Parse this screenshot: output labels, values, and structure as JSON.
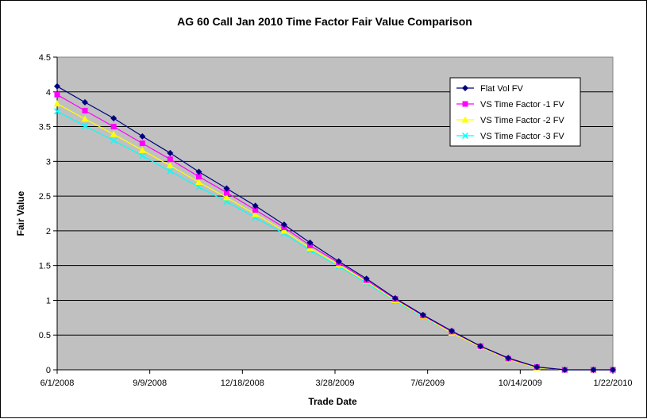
{
  "chart_data": {
    "type": "line",
    "title": "AG 60 Call Jan 2010 Time Factor Fair Value Comparison",
    "xlabel": "Trade Date",
    "ylabel": "Fair Value",
    "xlim": [
      "6/1/2008",
      "1/22/2010"
    ],
    "ylim": [
      0,
      4.5
    ],
    "x_ticks": [
      "6/1/2008",
      "9/9/2008",
      "12/18/2008",
      "3/28/2009",
      "7/6/2009",
      "10/14/2009",
      "1/22/2010"
    ],
    "y_ticks": [
      "0",
      "0.5",
      "1",
      "1.5",
      "2",
      "2.5",
      "3",
      "3.5",
      "4",
      "4.5"
    ],
    "grid": "horizontal",
    "legend_position": "top-right",
    "plot_background": "#C0C0C0",
    "x": [
      "6/1/2008",
      "7/1/2008",
      "8/1/2008",
      "9/1/2008",
      "10/1/2008",
      "11/1/2008",
      "12/1/2008",
      "1/1/2009",
      "2/1/2009",
      "3/1/2009",
      "4/1/2009",
      "5/1/2009",
      "6/1/2009",
      "7/1/2009",
      "8/1/2009",
      "9/1/2009",
      "10/1/2009",
      "11/1/2009",
      "12/1/2009",
      "1/1/2010",
      "1/22/2010"
    ],
    "series": [
      {
        "name": "Flat Vol FV",
        "color": "#000080",
        "marker": "diamond",
        "values": [
          4.08,
          3.85,
          3.62,
          3.36,
          3.12,
          2.85,
          2.61,
          2.36,
          2.09,
          1.83,
          1.56,
          1.31,
          1.03,
          0.79,
          0.56,
          0.34,
          0.17,
          0.04,
          0.0,
          0.0,
          0.0
        ]
      },
      {
        "name": "VS Time Factor -1 FV",
        "color": "#FF00FF",
        "marker": "square",
        "values": [
          3.96,
          3.73,
          3.5,
          3.26,
          3.03,
          2.78,
          2.55,
          2.3,
          2.05,
          1.79,
          1.54,
          1.29,
          1.02,
          0.78,
          0.55,
          0.34,
          0.16,
          0.04,
          0.0,
          0.0,
          0.0
        ]
      },
      {
        "name": "VS Time Factor -2 FV",
        "color": "#FFFF00",
        "marker": "triangle",
        "values": [
          3.83,
          3.61,
          3.39,
          3.16,
          2.94,
          2.7,
          2.48,
          2.24,
          2.0,
          1.75,
          1.51,
          1.27,
          1.0,
          0.77,
          0.53,
          0.33,
          0.15,
          0.03,
          0.0,
          0.0,
          0.0
        ]
      },
      {
        "name": "VS Time Factor -3 FV",
        "color": "#00FFFF",
        "marker": "x",
        "values": [
          3.72,
          3.51,
          3.3,
          3.08,
          2.86,
          2.63,
          2.42,
          2.19,
          1.96,
          1.72,
          1.49,
          1.25,
          0.99,
          0.76,
          0.53,
          0.33,
          0.15,
          0.03,
          0.0,
          0.0,
          0.0
        ]
      }
    ]
  }
}
